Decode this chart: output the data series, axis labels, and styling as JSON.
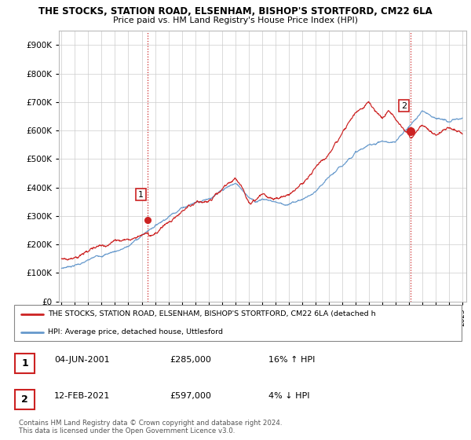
{
  "title": "THE STOCKS, STATION ROAD, ELSENHAM, BISHOP'S STORTFORD, CM22 6LA",
  "subtitle": "Price paid vs. HM Land Registry's House Price Index (HPI)",
  "ytick_values": [
    0,
    100000,
    200000,
    300000,
    400000,
    500000,
    600000,
    700000,
    800000,
    900000
  ],
  "ylim": [
    0,
    950000
  ],
  "xlim_start": 1994.8,
  "xlim_end": 2025.3,
  "red_line_color": "#cc2222",
  "blue_line_color": "#6699cc",
  "marker1_x": 2001.43,
  "marker1_y": 285000,
  "marker2_x": 2021.12,
  "marker2_y": 597000,
  "vline_color": "#cc2222",
  "vline_style": ":",
  "legend_label_red": "THE STOCKS, STATION ROAD, ELSENHAM, BISHOP'S STORTFORD, CM22 6LA (detached h",
  "legend_label_blue": "HPI: Average price, detached house, Uttlesford",
  "table_rows": [
    {
      "num": "1",
      "date": "04-JUN-2001",
      "price": "£285,000",
      "change": "16% ↑ HPI"
    },
    {
      "num": "2",
      "date": "12-FEB-2021",
      "price": "£597,000",
      "change": "4% ↓ HPI"
    }
  ],
  "footnote": "Contains HM Land Registry data © Crown copyright and database right 2024.\nThis data is licensed under the Open Government Licence v3.0.",
  "background_color": "#ffffff",
  "grid_color": "#cccccc"
}
